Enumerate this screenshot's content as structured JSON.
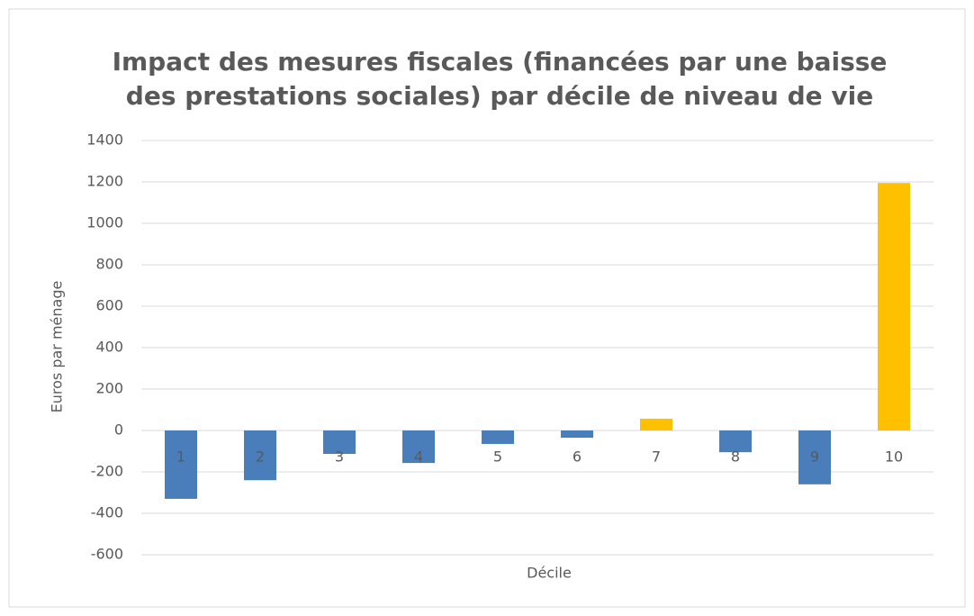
{
  "chart_data": {
    "type": "bar",
    "title": [
      "Impact des mesures fiscales (financées par une baisse",
      "des prestations sociales) par décile de niveau de vie"
    ],
    "x_label": "Décile",
    "y_label": "Euros par ménage",
    "categories": [
      "1",
      "2",
      "3",
      "4",
      "5",
      "6",
      "7",
      "8",
      "9",
      "10"
    ],
    "values": [
      -330,
      -240,
      -113,
      -157,
      -65,
      -35,
      57,
      -105,
      -260,
      1195
    ],
    "colors": [
      "#4a7ebb",
      "#4a7ebb",
      "#4a7ebb",
      "#4a7ebb",
      "#4a7ebb",
      "#4a7ebb",
      "#ffc000",
      "#4a7ebb",
      "#4a7ebb",
      "#ffc000"
    ],
    "ylim": [
      -600,
      1400
    ],
    "yticks": [
      -600,
      -400,
      -200,
      0,
      200,
      400,
      600,
      800,
      1000,
      1200,
      1400
    ],
    "grid": true
  }
}
